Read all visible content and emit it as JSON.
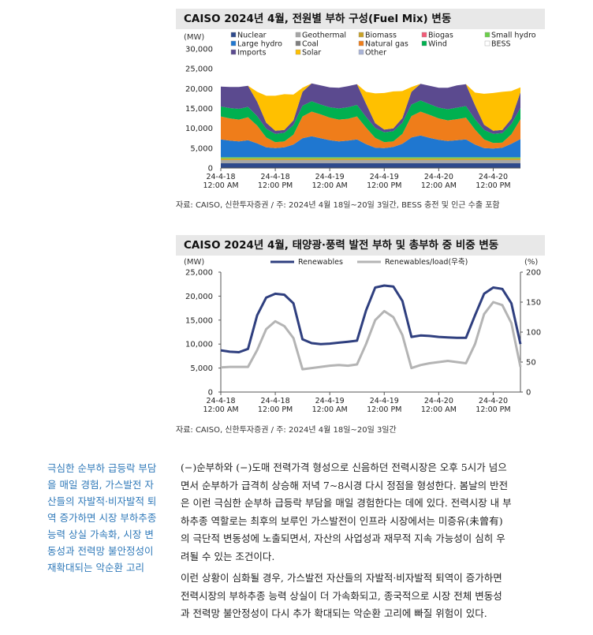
{
  "chart1": {
    "title": "CAISO 2024년 4월, 전원별 부하 구성(Fuel Mix) 변동",
    "unit": "(MW)",
    "y_ticks": [
      "30,000",
      "25,000",
      "20,000",
      "15,000",
      "10,000",
      "5,000",
      "0"
    ],
    "x_ticks": [
      [
        "24-4-18",
        "12:00 AM"
      ],
      [
        "24-4-18",
        "12:00 PM"
      ],
      [
        "24-4-19",
        "12:00 AM"
      ],
      [
        "24-4-19",
        "12:00 PM"
      ],
      [
        "24-4-20",
        "12:00 AM"
      ],
      [
        "24-4-20",
        "12:00 PM"
      ]
    ],
    "legend": [
      {
        "name": "Nuclear",
        "color": "#2e4a8c"
      },
      {
        "name": "Geothermal",
        "color": "#a6a6a6"
      },
      {
        "name": "Biomass",
        "color": "#c9a227"
      },
      {
        "name": "Biogas",
        "color": "#f25c78"
      },
      {
        "name": "Small hydro",
        "color": "#6ccf4a"
      },
      {
        "name": "Large hydro",
        "color": "#1f77d0"
      },
      {
        "name": "Coal",
        "color": "#7f7f7f"
      },
      {
        "name": "Natural gas",
        "color": "#ef7d1a"
      },
      {
        "name": "Wind",
        "color": "#00b050"
      },
      {
        "name": "BESS",
        "color": "#ffffff"
      },
      {
        "name": "Imports",
        "color": "#5b4a8f"
      },
      {
        "name": "Solar",
        "color": "#ffc000"
      },
      {
        "name": "Other",
        "color": "#aab4d8"
      }
    ],
    "source": "자료: CAISO, 신한투자증권 / 주: 2024년 4월 18일~20일 3일간, BESS 충전 및 인근 수출 포함"
  },
  "chart2": {
    "title": "CAISO 2024년 4월, 태양광·풍력 발전 부하 및 총부하 중 비중 변동",
    "unit_left": "(MW)",
    "unit_right": "(%)",
    "y_left_ticks": [
      "25,000",
      "20,000",
      "15,000",
      "10,000",
      "5,000",
      "0"
    ],
    "y_right_ticks": [
      "200",
      "150",
      "100",
      "50",
      "0"
    ],
    "x_ticks": [
      [
        "24-4-18",
        "12:00 AM"
      ],
      [
        "24-4-18",
        "12:00 PM"
      ],
      [
        "24-4-19",
        "12:00 AM"
      ],
      [
        "24-4-19",
        "12:00 PM"
      ],
      [
        "24-4-20",
        "12:00 AM"
      ],
      [
        "24-4-20",
        "12:00 PM"
      ]
    ],
    "legend": [
      {
        "name": "Renewables",
        "color": "#2f3f7f"
      },
      {
        "name": "Renewables/load(우축)",
        "color": "#b4b4b4"
      }
    ],
    "source": "자료: CAISO, 신한투자증권 / 주: 2024년 4월 18일~20일 3일간"
  },
  "chart_data": [
    {
      "type": "area",
      "title": "CAISO 2024년 4월, 전원별 부하 구성(Fuel Mix) 변동",
      "ylabel": "(MW)",
      "ylim": [
        0,
        30000
      ],
      "x_hours": [
        0,
        2,
        4,
        6,
        8,
        10,
        12,
        14,
        16,
        18,
        20,
        22,
        24,
        26,
        28,
        30,
        32,
        34,
        36,
        38,
        40,
        42,
        44,
        46,
        48,
        50,
        52,
        54,
        56,
        58,
        60,
        62,
        64,
        66
      ],
      "stack_order": [
        "Nuclear",
        "Geothermal",
        "Biomass",
        "Small hydro",
        "Large hydro",
        "Natural gas",
        "Wind",
        "Imports",
        "Solar"
      ],
      "series": [
        {
          "name": "Nuclear",
          "values": [
            1200,
            1200,
            1200,
            1200,
            1200,
            1200,
            1200,
            1200,
            1200,
            1200,
            1200,
            1200,
            1200,
            1200,
            1200,
            1200,
            1200,
            1200,
            1200,
            1200,
            1200,
            1200,
            1200,
            1200,
            1200,
            1200,
            1200,
            1200,
            1200,
            1200,
            1200,
            1200,
            1200,
            1200
          ]
        },
        {
          "name": "Geothermal",
          "values": [
            800,
            800,
            800,
            800,
            800,
            800,
            800,
            800,
            800,
            800,
            800,
            800,
            800,
            800,
            800,
            800,
            800,
            800,
            800,
            800,
            800,
            800,
            800,
            800,
            800,
            800,
            800,
            800,
            800,
            800,
            800,
            800,
            800,
            800
          ]
        },
        {
          "name": "Biomass",
          "values": [
            400,
            400,
            400,
            400,
            400,
            400,
            400,
            400,
            400,
            400,
            400,
            400,
            400,
            400,
            400,
            400,
            400,
            400,
            400,
            400,
            400,
            400,
            400,
            400,
            400,
            400,
            400,
            400,
            400,
            400,
            400,
            400,
            400,
            400
          ]
        },
        {
          "name": "Small hydro",
          "values": [
            300,
            300,
            300,
            300,
            300,
            300,
            300,
            300,
            300,
            300,
            300,
            300,
            300,
            300,
            300,
            300,
            300,
            300,
            300,
            300,
            300,
            300,
            300,
            300,
            300,
            300,
            300,
            300,
            300,
            300,
            300,
            300,
            300,
            300
          ]
        },
        {
          "name": "Large hydro",
          "values": [
            4500,
            4200,
            4000,
            4300,
            3500,
            2500,
            2300,
            2500,
            3200,
            4800,
            5300,
            4800,
            4300,
            4000,
            4200,
            4500,
            3300,
            2400,
            2300,
            2600,
            3400,
            5000,
            5500,
            4900,
            4400,
            4100,
            4300,
            4500,
            3200,
            2300,
            2200,
            2400,
            3400,
            4600
          ]
        },
        {
          "name": "Natural gas",
          "values": [
            5800,
            5600,
            5500,
            5800,
            4500,
            2500,
            1500,
            1500,
            2500,
            5500,
            6200,
            6000,
            5700,
            5500,
            5500,
            5800,
            4200,
            2500,
            1500,
            1400,
            2500,
            5400,
            6000,
            5800,
            5400,
            5200,
            5300,
            5500,
            3800,
            2200,
            1400,
            1300,
            2400,
            5000
          ]
        },
        {
          "name": "Wind",
          "values": [
            2500,
            2600,
            2700,
            2600,
            2400,
            2200,
            2100,
            2200,
            2400,
            2700,
            2600,
            2500,
            2600,
            2800,
            2900,
            2900,
            2700,
            2500,
            2500,
            2600,
            2800,
            2900,
            2800,
            2700,
            2700,
            2800,
            2900,
            2900,
            2600,
            2400,
            2300,
            2400,
            2600,
            2800
          ]
        },
        {
          "name": "Imports",
          "values": [
            5000,
            5300,
            5500,
            5300,
            3600,
            1500,
            800,
            700,
            1200,
            3500,
            4500,
            4800,
            5000,
            5200,
            5300,
            5200,
            3300,
            1200,
            700,
            700,
            1200,
            3200,
            4200,
            4600,
            5000,
            5400,
            5600,
            5500,
            3500,
            1300,
            800,
            800,
            1300,
            4000
          ]
        },
        {
          "name": "Solar",
          "values": [
            0,
            0,
            0,
            0,
            2500,
            6800,
            8800,
            9000,
            6500,
            1000,
            0,
            0,
            0,
            0,
            0,
            0,
            3000,
            7500,
            9200,
            9300,
            6800,
            1200,
            0,
            0,
            0,
            0,
            0,
            0,
            3200,
            7800,
            9500,
            9600,
            7000,
            1200
          ]
        }
      ]
    },
    {
      "type": "line",
      "title": "CAISO 2024년 4월, 태양광·풍력 발전 부하 및 총부하 중 비중 변동",
      "ylabel": "(MW)",
      "ylabel_right": "(%)",
      "ylim": [
        0,
        25000
      ],
      "ylim_right": [
        0,
        200
      ],
      "x_hours": [
        0,
        2,
        4,
        6,
        8,
        10,
        12,
        14,
        16,
        18,
        20,
        22,
        24,
        26,
        28,
        30,
        32,
        34,
        36,
        38,
        40,
        42,
        44,
        46,
        48,
        50,
        52,
        54,
        56,
        58,
        60,
        62,
        64,
        66
      ],
      "series": [
        {
          "name": "Renewables",
          "axis": "left",
          "values": [
            8700,
            8400,
            8300,
            9000,
            16000,
            19700,
            20500,
            20300,
            18500,
            11000,
            10200,
            10000,
            10100,
            10300,
            10500,
            10700,
            17000,
            21800,
            22200,
            22000,
            19000,
            11500,
            11800,
            11700,
            11500,
            11400,
            11300,
            11300,
            16000,
            20500,
            21800,
            21500,
            18500,
            10000
          ]
        },
        {
          "name": "Renewables/load(우축)",
          "axis": "left_scaled_to_right",
          "values": [
            41,
            42,
            42,
            42,
            70,
            105,
            118,
            110,
            90,
            38,
            40,
            42,
            44,
            45,
            44,
            46,
            80,
            120,
            135,
            125,
            95,
            40,
            45,
            48,
            50,
            52,
            50,
            48,
            80,
            130,
            150,
            145,
            115,
            42
          ]
        }
      ]
    }
  ],
  "sidebar": {
    "lines": [
      "극심한 순부하 급등락 부담",
      "을 매일 경험, 가스발전 자",
      "산들의 자발적·비자발적 퇴",
      "역 증가하면 시장 부하추종",
      "능력 상실 가속화, 시장 변",
      "동성과 전력망 불안정성이",
      "재확대되는 악순환 고리"
    ]
  },
  "body": {
    "para1": [
      "(−)순부하와 (−)도매 전력가격 형성으로 신음하던 전력시장은 오후 5시가 넘으",
      "면서 순부하가 급격히 상승해 저녁 7~8시경 다시 정점을 형성한다. 봄날의 반전",
      "은 이런 극심한 순부하 급등락 부담을 매일 경험한다는 데에 있다. 전력시장 내 부",
      "하추종 역할로는 최후의 보루인 가스발전이 인프라 시장에서는 미증유(未曾有)",
      "의 극단적 변동성에 노출되면서, 자산의 사업성과 재무적 지속 가능성이 심히 우",
      "려될 수 있는 조건이다."
    ],
    "para2": [
      "이런 상황이 심화될 경우, 가스발전 자산들의 자발적·비자발적 퇴역이 증가하면",
      "전력시장의 부하추종 능력 상실이 더 가속화되고, 종국적으로 시장 전체 변동성",
      "과 전력망 불안정성이 다시 추가 확대되는 악순환 고리에 빠질 위험이 있다."
    ]
  }
}
